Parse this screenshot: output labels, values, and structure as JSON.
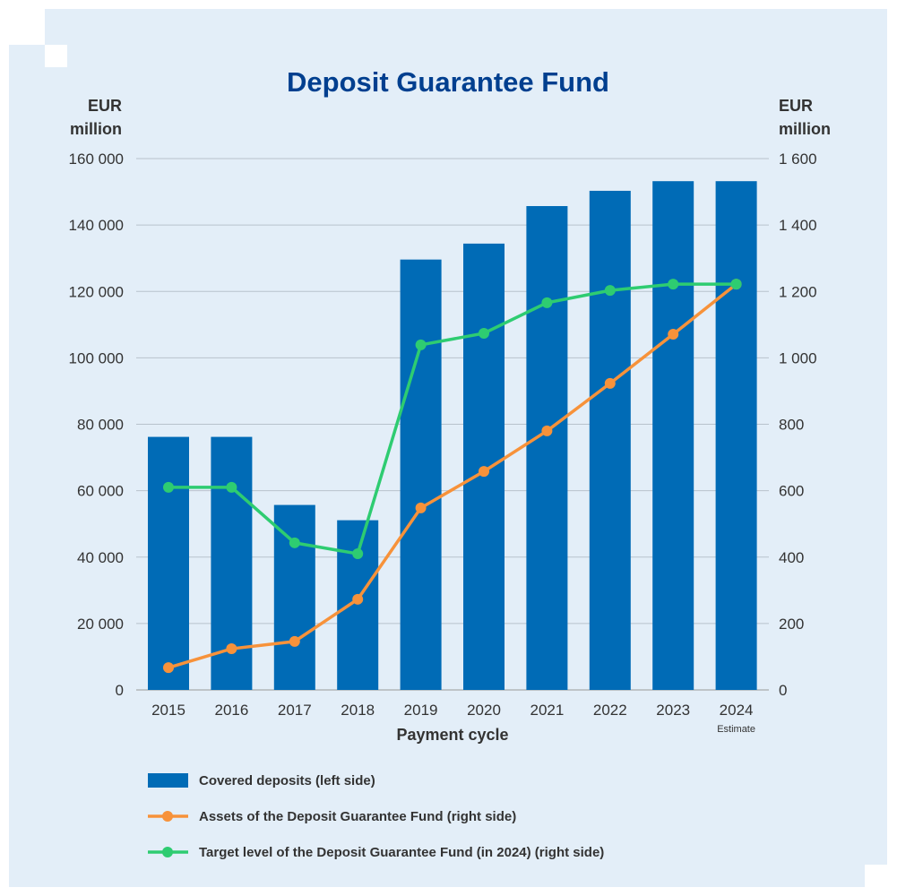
{
  "chart_data": {
    "type": "bar+line",
    "title": "Deposit Guarantee Fund",
    "xlabel": "Payment cycle",
    "ylabel_left": "EUR million",
    "ylabel_right": "EUR million",
    "categories": [
      "2015",
      "2016",
      "2017",
      "2018",
      "2019",
      "2020",
      "2021",
      "2022",
      "2023",
      "2024"
    ],
    "category_notes": {
      "2024": "Estimate"
    },
    "ylim_left": [
      0,
      160000
    ],
    "ylim_right": [
      0,
      1600
    ],
    "yticks_left": [
      "0",
      "20 000",
      "40 000",
      "60 000",
      "80 000",
      "100 000",
      "120 000",
      "140 000",
      "160 000"
    ],
    "yticks_right": [
      "0",
      "200",
      "400",
      "600",
      "800",
      "1 000",
      "1 200",
      "1 400",
      "1 600"
    ],
    "grid": true,
    "legend_placement": "bottom",
    "series": [
      {
        "name": "Covered deposits (left side)",
        "type": "bar",
        "axis": "left",
        "color": "#006bb6",
        "values": [
          76200,
          76200,
          55700,
          51100,
          129600,
          134400,
          145700,
          150300,
          153200,
          153200
        ]
      },
      {
        "name": "Assets of the Deposit Guarantee Fund (right side)",
        "type": "line",
        "axis": "right",
        "color": "#f7923a",
        "values": [
          67,
          124,
          146,
          273,
          548,
          658,
          780,
          923,
          1071,
          1222
        ]
      },
      {
        "name": "Target level of the Deposit Guarantee Fund (in 2024) (right side)",
        "type": "line",
        "axis": "right",
        "color": "#2ecc71",
        "values": [
          610,
          610,
          443,
          410,
          1039,
          1074,
          1166,
          1203,
          1222,
          1222
        ]
      }
    ]
  }
}
